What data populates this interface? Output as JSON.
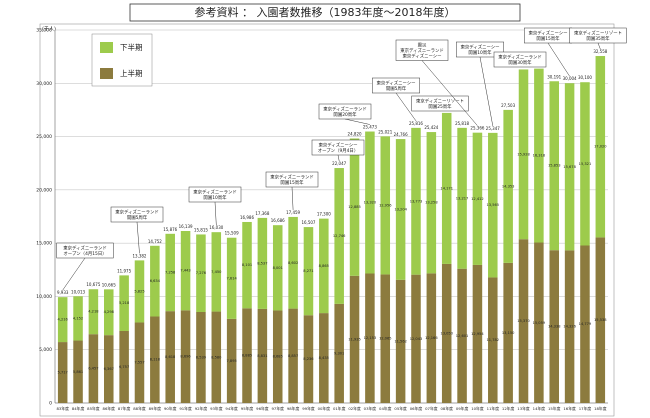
{
  "chart_data": {
    "type": "stacked_bar",
    "title": "参考資料 ： 入園者数推移（1983年度～2018年度）",
    "ylabel": "(千人)",
    "categories": [
      "83年度",
      "84年度",
      "85年度",
      "86年度",
      "87年度",
      "88年度",
      "89年度",
      "90年度",
      "91年度",
      "92年度",
      "93年度",
      "94年度",
      "95年度",
      "96年度",
      "97年度",
      "98年度",
      "99年度",
      "00年度",
      "01年度",
      "02年度",
      "03年度",
      "04年度",
      "05年度",
      "06年度",
      "07年度",
      "08年度",
      "09年度",
      "10年度",
      "11年度",
      "12年度",
      "13年度",
      "14年度",
      "15年度",
      "16年度",
      "17年度",
      "18年度"
    ],
    "series": [
      {
        "name": "上半期",
        "color": "#8c7b3e",
        "values": [
          5717,
          5861,
          6457,
          6367,
          6757,
          7557,
          8118,
          8618,
          8696,
          8539,
          8580,
          7895,
          8885,
          8831,
          8685,
          8857,
          8236,
          8435,
          9301,
          11935,
          12153,
          12065,
          11562,
          12043,
          12166,
          13050,
          12601,
          12954,
          11782,
          13150,
          15370,
          15059,
          14338,
          14326,
          14779,
          15538
        ],
        "value_labels": [
          "5,717",
          "5,861",
          "6,457",
          "6,367",
          "6,757",
          "7,557",
          "8,118",
          "8,618",
          "8,696",
          "8,539",
          "8,580",
          "7,895",
          "8,885",
          "8,831",
          "8,685",
          "8,857",
          "8,236",
          "8,435",
          "9,301",
          "11,935",
          "12,153",
          "12,065",
          "11,562",
          "12,043",
          "12,166",
          "13,050",
          "12,601",
          "12,954",
          "11,782",
          "13,150",
          "15,370",
          "15,059",
          "14,338",
          "14,326",
          "14,779",
          "15,538"
        ]
      },
      {
        "name": "下半期",
        "color": "#9dcb4c",
        "values": [
          4216,
          4152,
          4218,
          4298,
          5218,
          5825,
          6634,
          7258,
          7443,
          7276,
          7450,
          7614,
          8101,
          8537,
          8001,
          8602,
          8271,
          8865,
          12746,
          12885,
          13320,
          12956,
          13204,
          13773,
          13258,
          14171,
          13217,
          12412,
          13565,
          14353,
          15928,
          16318,
          15853,
          15678,
          15321,
          17020
        ],
        "value_labels": [
          "4,216",
          "4,152",
          "4,218",
          "4,298",
          "5,218",
          "5,825",
          "6,634",
          "7,258",
          "7,443",
          "7,276",
          "7,450",
          "7,614",
          "8,101",
          "8,537",
          "8,001",
          "8,602",
          "8,271",
          "8,865",
          "12,746",
          "12,885",
          "13,320",
          "12,956",
          "13,204",
          "13,773",
          "13,258",
          "14,171",
          "13,217",
          "12,412",
          "13,565",
          "14,353",
          "15,928",
          "16,318",
          "15,853",
          "15,678",
          "15,321",
          "17,020"
        ]
      }
    ],
    "totals": [
      9933,
      10013,
      10675,
      10665,
      11975,
      13382,
      14752,
      15876,
      16139,
      15815,
      16030,
      15509,
      16986,
      17368,
      16686,
      17459,
      16507,
      17300,
      22047,
      24820,
      25473,
      25021,
      24766,
      25816,
      25424,
      27221,
      25818,
      25366,
      25347,
      27503,
      31298,
      31377,
      30191,
      30004,
      30100,
      32558
    ],
    "total_labels": [
      "9,933",
      "10,013",
      "10,675",
      "10,665",
      "11,975",
      "13,382",
      "14,752",
      "15,876",
      "16,139",
      "15,815",
      "16,030",
      "15,509",
      "16,986",
      "17,368",
      "16,686",
      "17,459",
      "16,507",
      "17,300",
      "22,047",
      "24,820",
      "25,473",
      "25,021",
      "24,766",
      "25,816",
      "25,424",
      "27,221",
      "25,818",
      "25,366",
      "25,347",
      "27,503",
      "31,298",
      "31,377",
      "30,191",
      "30,004",
      "30,100",
      "32,558"
    ],
    "ylim": [
      0,
      35000
    ],
    "yticks": [
      0,
      {
        "value": 5000,
        "label": "5,000"
      },
      {
        "value": 10000,
        "label": "10,000"
      },
      {
        "value": 15000,
        "label": "15,000"
      },
      {
        "value": 20000,
        "label": "20,000"
      },
      {
        "value": 25000,
        "label": "25,000"
      },
      {
        "value": 30000,
        "label": "30,000"
      },
      {
        "value": 35000,
        "label": "35,000"
      }
    ],
    "grid": true,
    "annotations": [
      [
        "東京ディズニーランド",
        "オープン（4月15日）"
      ],
      [
        "東京ディズニーランド",
        "開園5周年"
      ],
      [
        "東京ディズニーランド",
        "開園10周年"
      ],
      [
        "東京ディズニーランド",
        "開園15周年"
      ],
      [
        "東京ディズニーシー",
        "オープン（9月4日）"
      ],
      [
        "東京ディズニーランド",
        "開園20周年"
      ],
      [
        "東京ディズニーシー",
        "開園5周年"
      ],
      [
        "東京ディズニーリゾート",
        "開園25周年"
      ],
      [
        "震災",
        "東京ディズニーランド",
        "東京ディズニーシー"
      ],
      [
        "東京ディズニーシー",
        "開園10周年"
      ],
      [
        "東京ディズニーランド",
        "開園30周年"
      ],
      [
        "東京ディズニーシー",
        "開園15周年"
      ],
      [
        "東京ディズニーリゾート",
        "開園35周年"
      ]
    ]
  }
}
